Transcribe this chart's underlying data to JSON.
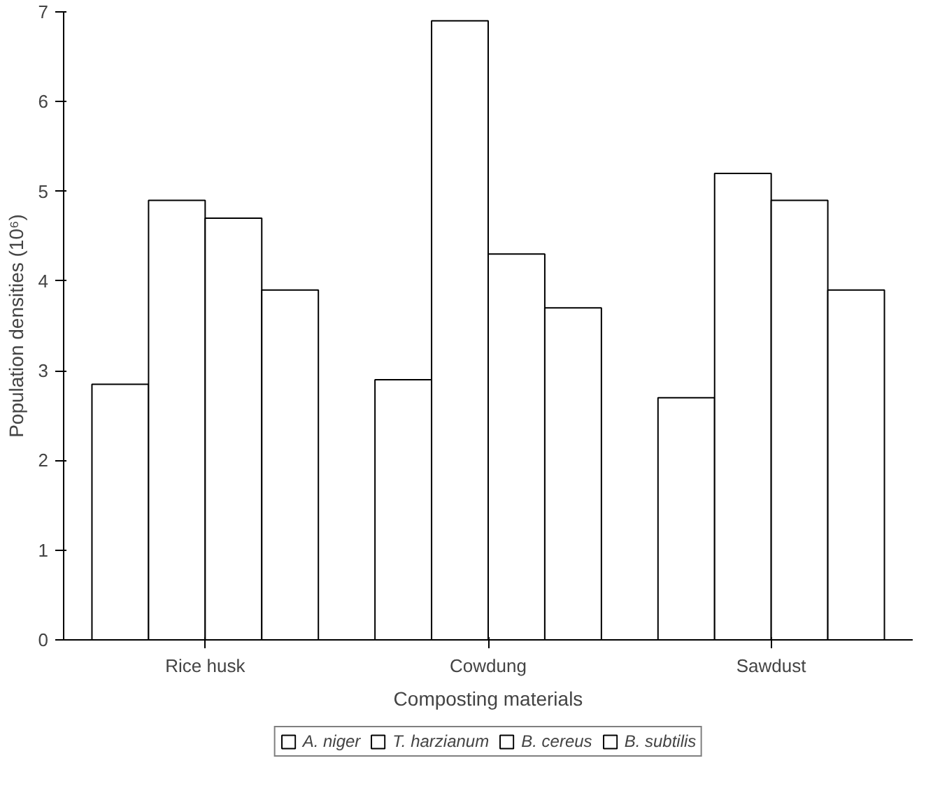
{
  "chart_data": {
    "type": "bar",
    "xlabel": "Composting materials",
    "ylabel": "Population densities (10⁶)",
    "categories": [
      "Rice husk",
      "Cowdung",
      "Sawdust"
    ],
    "series": [
      {
        "name": "A. niger",
        "color": "#ffffff",
        "values": [
          2.85,
          2.9,
          2.7
        ]
      },
      {
        "name": "T. harzianum",
        "color": "#ffffff",
        "values": [
          4.9,
          6.9,
          5.2
        ]
      },
      {
        "name": "B. cereus",
        "color": "#ffffff",
        "values": [
          4.7,
          4.3,
          4.9
        ]
      },
      {
        "name": "B. subtilis",
        "color": "#ffffff",
        "values": [
          3.9,
          3.7,
          3.9
        ]
      }
    ],
    "ylim": [
      0,
      7
    ],
    "yticks": [
      0,
      1,
      2,
      3,
      4,
      5,
      6,
      7
    ],
    "grid": false,
    "legend": "bottom"
  }
}
